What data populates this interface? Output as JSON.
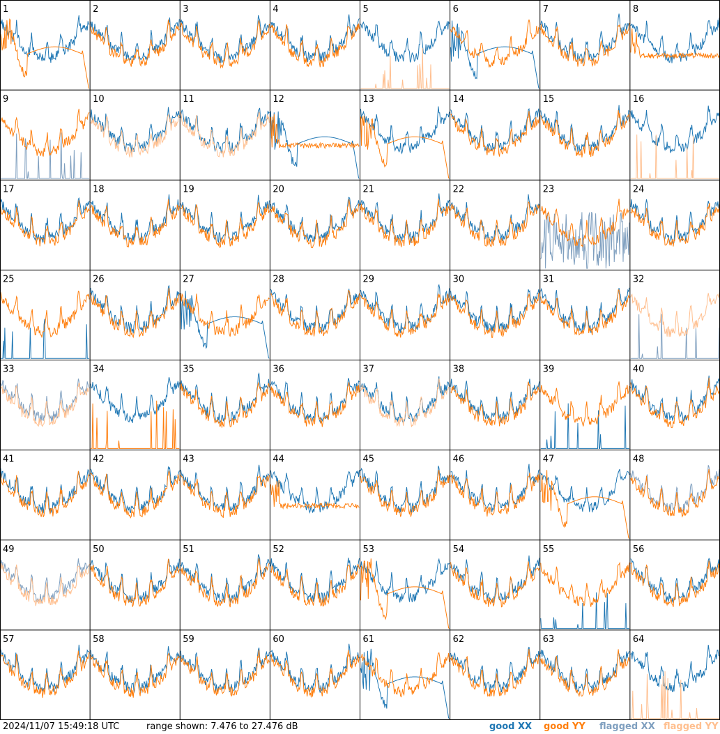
{
  "footer": {
    "timestamp": "2024/11/07 15:49:18 UTC",
    "range_text": "range shown: 7.476 to 27.476 dB"
  },
  "legend": {
    "good_xx": "good XX",
    "good_yy": "good YY",
    "flagged_xx": "flagged XX",
    "flagged_yy": "flagged YY"
  },
  "colors": {
    "good_xx": "#1f77b4",
    "good_yy": "#ff7f0e",
    "flagged_xx": "#7f9fbf",
    "flagged_yy": "#ffbf8f",
    "background": "#ffffff",
    "grid": "#000000"
  },
  "chart_data": {
    "type": "line",
    "grid": {
      "rows": 8,
      "cols": 8
    },
    "ylim": [
      7.476,
      27.476
    ],
    "y_unit": "dB",
    "panels": [
      {
        "id": "1",
        "xx": "good",
        "yy": "good",
        "shape_xx": "normal",
        "shape_yy": "dip"
      },
      {
        "id": "2",
        "xx": "good",
        "yy": "good",
        "shape_xx": "normal",
        "shape_yy": "normal"
      },
      {
        "id": "3",
        "xx": "good",
        "yy": "good",
        "shape_xx": "normal",
        "shape_yy": "normal"
      },
      {
        "id": "4",
        "xx": "good",
        "yy": "good",
        "shape_xx": "normal",
        "shape_yy": "normal"
      },
      {
        "id": "5",
        "xx": "good",
        "yy": "flagged",
        "shape_xx": "normal",
        "shape_yy": "spikes"
      },
      {
        "id": "6",
        "xx": "good",
        "yy": "good",
        "shape_xx": "dip",
        "shape_yy": "normal"
      },
      {
        "id": "7",
        "xx": "good",
        "yy": "good",
        "shape_xx": "normal",
        "shape_yy": "normal"
      },
      {
        "id": "8",
        "xx": "good",
        "yy": "good",
        "shape_xx": "normal",
        "shape_yy": "flat"
      },
      {
        "id": "9",
        "xx": "flagged",
        "yy": "good",
        "shape_xx": "spikes",
        "shape_yy": "normal"
      },
      {
        "id": "10",
        "xx": "good",
        "yy": "flagged",
        "shape_xx": "normal",
        "shape_yy": "normal"
      },
      {
        "id": "11",
        "xx": "good",
        "yy": "flagged",
        "shape_xx": "normal",
        "shape_yy": "normal"
      },
      {
        "id": "12",
        "xx": "good",
        "yy": "good",
        "shape_xx": "dip",
        "shape_yy": "flat"
      },
      {
        "id": "13",
        "xx": "good",
        "yy": "good",
        "shape_xx": "normal",
        "shape_yy": "dip"
      },
      {
        "id": "14",
        "xx": "good",
        "yy": "good",
        "shape_xx": "normal",
        "shape_yy": "normal"
      },
      {
        "id": "15",
        "xx": "good",
        "yy": "good",
        "shape_xx": "normal",
        "shape_yy": "normal"
      },
      {
        "id": "16",
        "xx": "good",
        "yy": "flagged",
        "shape_xx": "normal",
        "shape_yy": "spikes"
      },
      {
        "id": "17",
        "xx": "good",
        "yy": "good",
        "shape_xx": "normal",
        "shape_yy": "normal"
      },
      {
        "id": "18",
        "xx": "good",
        "yy": "good",
        "shape_xx": "normal",
        "shape_yy": "normal"
      },
      {
        "id": "19",
        "xx": "good",
        "yy": "good",
        "shape_xx": "normal",
        "shape_yy": "normal"
      },
      {
        "id": "20",
        "xx": "good",
        "yy": "good",
        "shape_xx": "normal",
        "shape_yy": "normal"
      },
      {
        "id": "21",
        "xx": "good",
        "yy": "good",
        "shape_xx": "normal",
        "shape_yy": "normal"
      },
      {
        "id": "22",
        "xx": "good",
        "yy": "good",
        "shape_xx": "normal",
        "shape_yy": "normal"
      },
      {
        "id": "23",
        "xx": "flagged",
        "yy": "good",
        "shape_xx": "noise",
        "shape_yy": "normal"
      },
      {
        "id": "24",
        "xx": "good",
        "yy": "good",
        "shape_xx": "normal",
        "shape_yy": "normal"
      },
      {
        "id": "25",
        "xx": "good",
        "yy": "good",
        "shape_xx": "spikes",
        "shape_yy": "normal"
      },
      {
        "id": "26",
        "xx": "good",
        "yy": "good",
        "shape_xx": "normal",
        "shape_yy": "normal"
      },
      {
        "id": "27",
        "xx": "good",
        "yy": "good",
        "shape_xx": "dip",
        "shape_yy": "normal"
      },
      {
        "id": "28",
        "xx": "good",
        "yy": "good",
        "shape_xx": "normal",
        "shape_yy": "normal"
      },
      {
        "id": "29",
        "xx": "good",
        "yy": "good",
        "shape_xx": "normal",
        "shape_yy": "normal"
      },
      {
        "id": "30",
        "xx": "good",
        "yy": "good",
        "shape_xx": "normal",
        "shape_yy": "normal"
      },
      {
        "id": "31",
        "xx": "good",
        "yy": "good",
        "shape_xx": "normal",
        "shape_yy": "normal"
      },
      {
        "id": "32",
        "xx": "flagged",
        "yy": "flagged",
        "shape_xx": "spikes",
        "shape_yy": "normal"
      },
      {
        "id": "33",
        "xx": "flagged",
        "yy": "flagged",
        "shape_xx": "normal",
        "shape_yy": "normal"
      },
      {
        "id": "34",
        "xx": "good",
        "yy": "good",
        "shape_xx": "normal",
        "shape_yy": "spikes"
      },
      {
        "id": "35",
        "xx": "good",
        "yy": "good",
        "shape_xx": "normal",
        "shape_yy": "normal"
      },
      {
        "id": "36",
        "xx": "good",
        "yy": "good",
        "shape_xx": "normal",
        "shape_yy": "normal"
      },
      {
        "id": "37",
        "xx": "good",
        "yy": "flagged",
        "shape_xx": "normal",
        "shape_yy": "normal"
      },
      {
        "id": "38",
        "xx": "good",
        "yy": "good",
        "shape_xx": "normal",
        "shape_yy": "normal"
      },
      {
        "id": "39",
        "xx": "good",
        "yy": "good",
        "shape_xx": "spikes",
        "shape_yy": "normal"
      },
      {
        "id": "40",
        "xx": "good",
        "yy": "good",
        "shape_xx": "normal",
        "shape_yy": "normal"
      },
      {
        "id": "41",
        "xx": "good",
        "yy": "good",
        "shape_xx": "normal",
        "shape_yy": "normal"
      },
      {
        "id": "42",
        "xx": "good",
        "yy": "good",
        "shape_xx": "normal",
        "shape_yy": "normal"
      },
      {
        "id": "43",
        "xx": "good",
        "yy": "good",
        "shape_xx": "normal",
        "shape_yy": "normal"
      },
      {
        "id": "44",
        "xx": "good",
        "yy": "good",
        "shape_xx": "normal",
        "shape_yy": "flat"
      },
      {
        "id": "45",
        "xx": "good",
        "yy": "good",
        "shape_xx": "normal",
        "shape_yy": "normal"
      },
      {
        "id": "46",
        "xx": "good",
        "yy": "good",
        "shape_xx": "normal",
        "shape_yy": "normal"
      },
      {
        "id": "47",
        "xx": "good",
        "yy": "good",
        "shape_xx": "normal",
        "shape_yy": "dip"
      },
      {
        "id": "48",
        "xx": "flagged",
        "yy": "good",
        "shape_xx": "normal",
        "shape_yy": "normal"
      },
      {
        "id": "49",
        "xx": "flagged",
        "yy": "flagged",
        "shape_xx": "normal",
        "shape_yy": "normal"
      },
      {
        "id": "50",
        "xx": "good",
        "yy": "good",
        "shape_xx": "normal",
        "shape_yy": "normal"
      },
      {
        "id": "51",
        "xx": "good",
        "yy": "good",
        "shape_xx": "normal",
        "shape_yy": "normal"
      },
      {
        "id": "52",
        "xx": "good",
        "yy": "good",
        "shape_xx": "normal",
        "shape_yy": "normal"
      },
      {
        "id": "53",
        "xx": "good",
        "yy": "good",
        "shape_xx": "normal",
        "shape_yy": "dip"
      },
      {
        "id": "54",
        "xx": "good",
        "yy": "good",
        "shape_xx": "normal",
        "shape_yy": "normal"
      },
      {
        "id": "55",
        "xx": "good",
        "yy": "good",
        "shape_xx": "spikes",
        "shape_yy": "normal"
      },
      {
        "id": "56",
        "xx": "good",
        "yy": "good",
        "shape_xx": "normal",
        "shape_yy": "normal"
      },
      {
        "id": "57",
        "xx": "good",
        "yy": "good",
        "shape_xx": "normal",
        "shape_yy": "normal"
      },
      {
        "id": "58",
        "xx": "good",
        "yy": "good",
        "shape_xx": "normal",
        "shape_yy": "normal"
      },
      {
        "id": "59",
        "xx": "good",
        "yy": "good",
        "shape_xx": "normal",
        "shape_yy": "normal"
      },
      {
        "id": "60",
        "xx": "good",
        "yy": "good",
        "shape_xx": "normal",
        "shape_yy": "normal"
      },
      {
        "id": "61",
        "xx": "good",
        "yy": "good",
        "shape_xx": "dip",
        "shape_yy": "normal"
      },
      {
        "id": "62",
        "xx": "good",
        "yy": "good",
        "shape_xx": "normal",
        "shape_yy": "normal"
      },
      {
        "id": "63",
        "xx": "good",
        "yy": "good",
        "shape_xx": "normal",
        "shape_yy": "normal"
      },
      {
        "id": "64",
        "xx": "good",
        "yy": "flagged",
        "shape_xx": "normal",
        "shape_yy": "spikes"
      }
    ]
  }
}
